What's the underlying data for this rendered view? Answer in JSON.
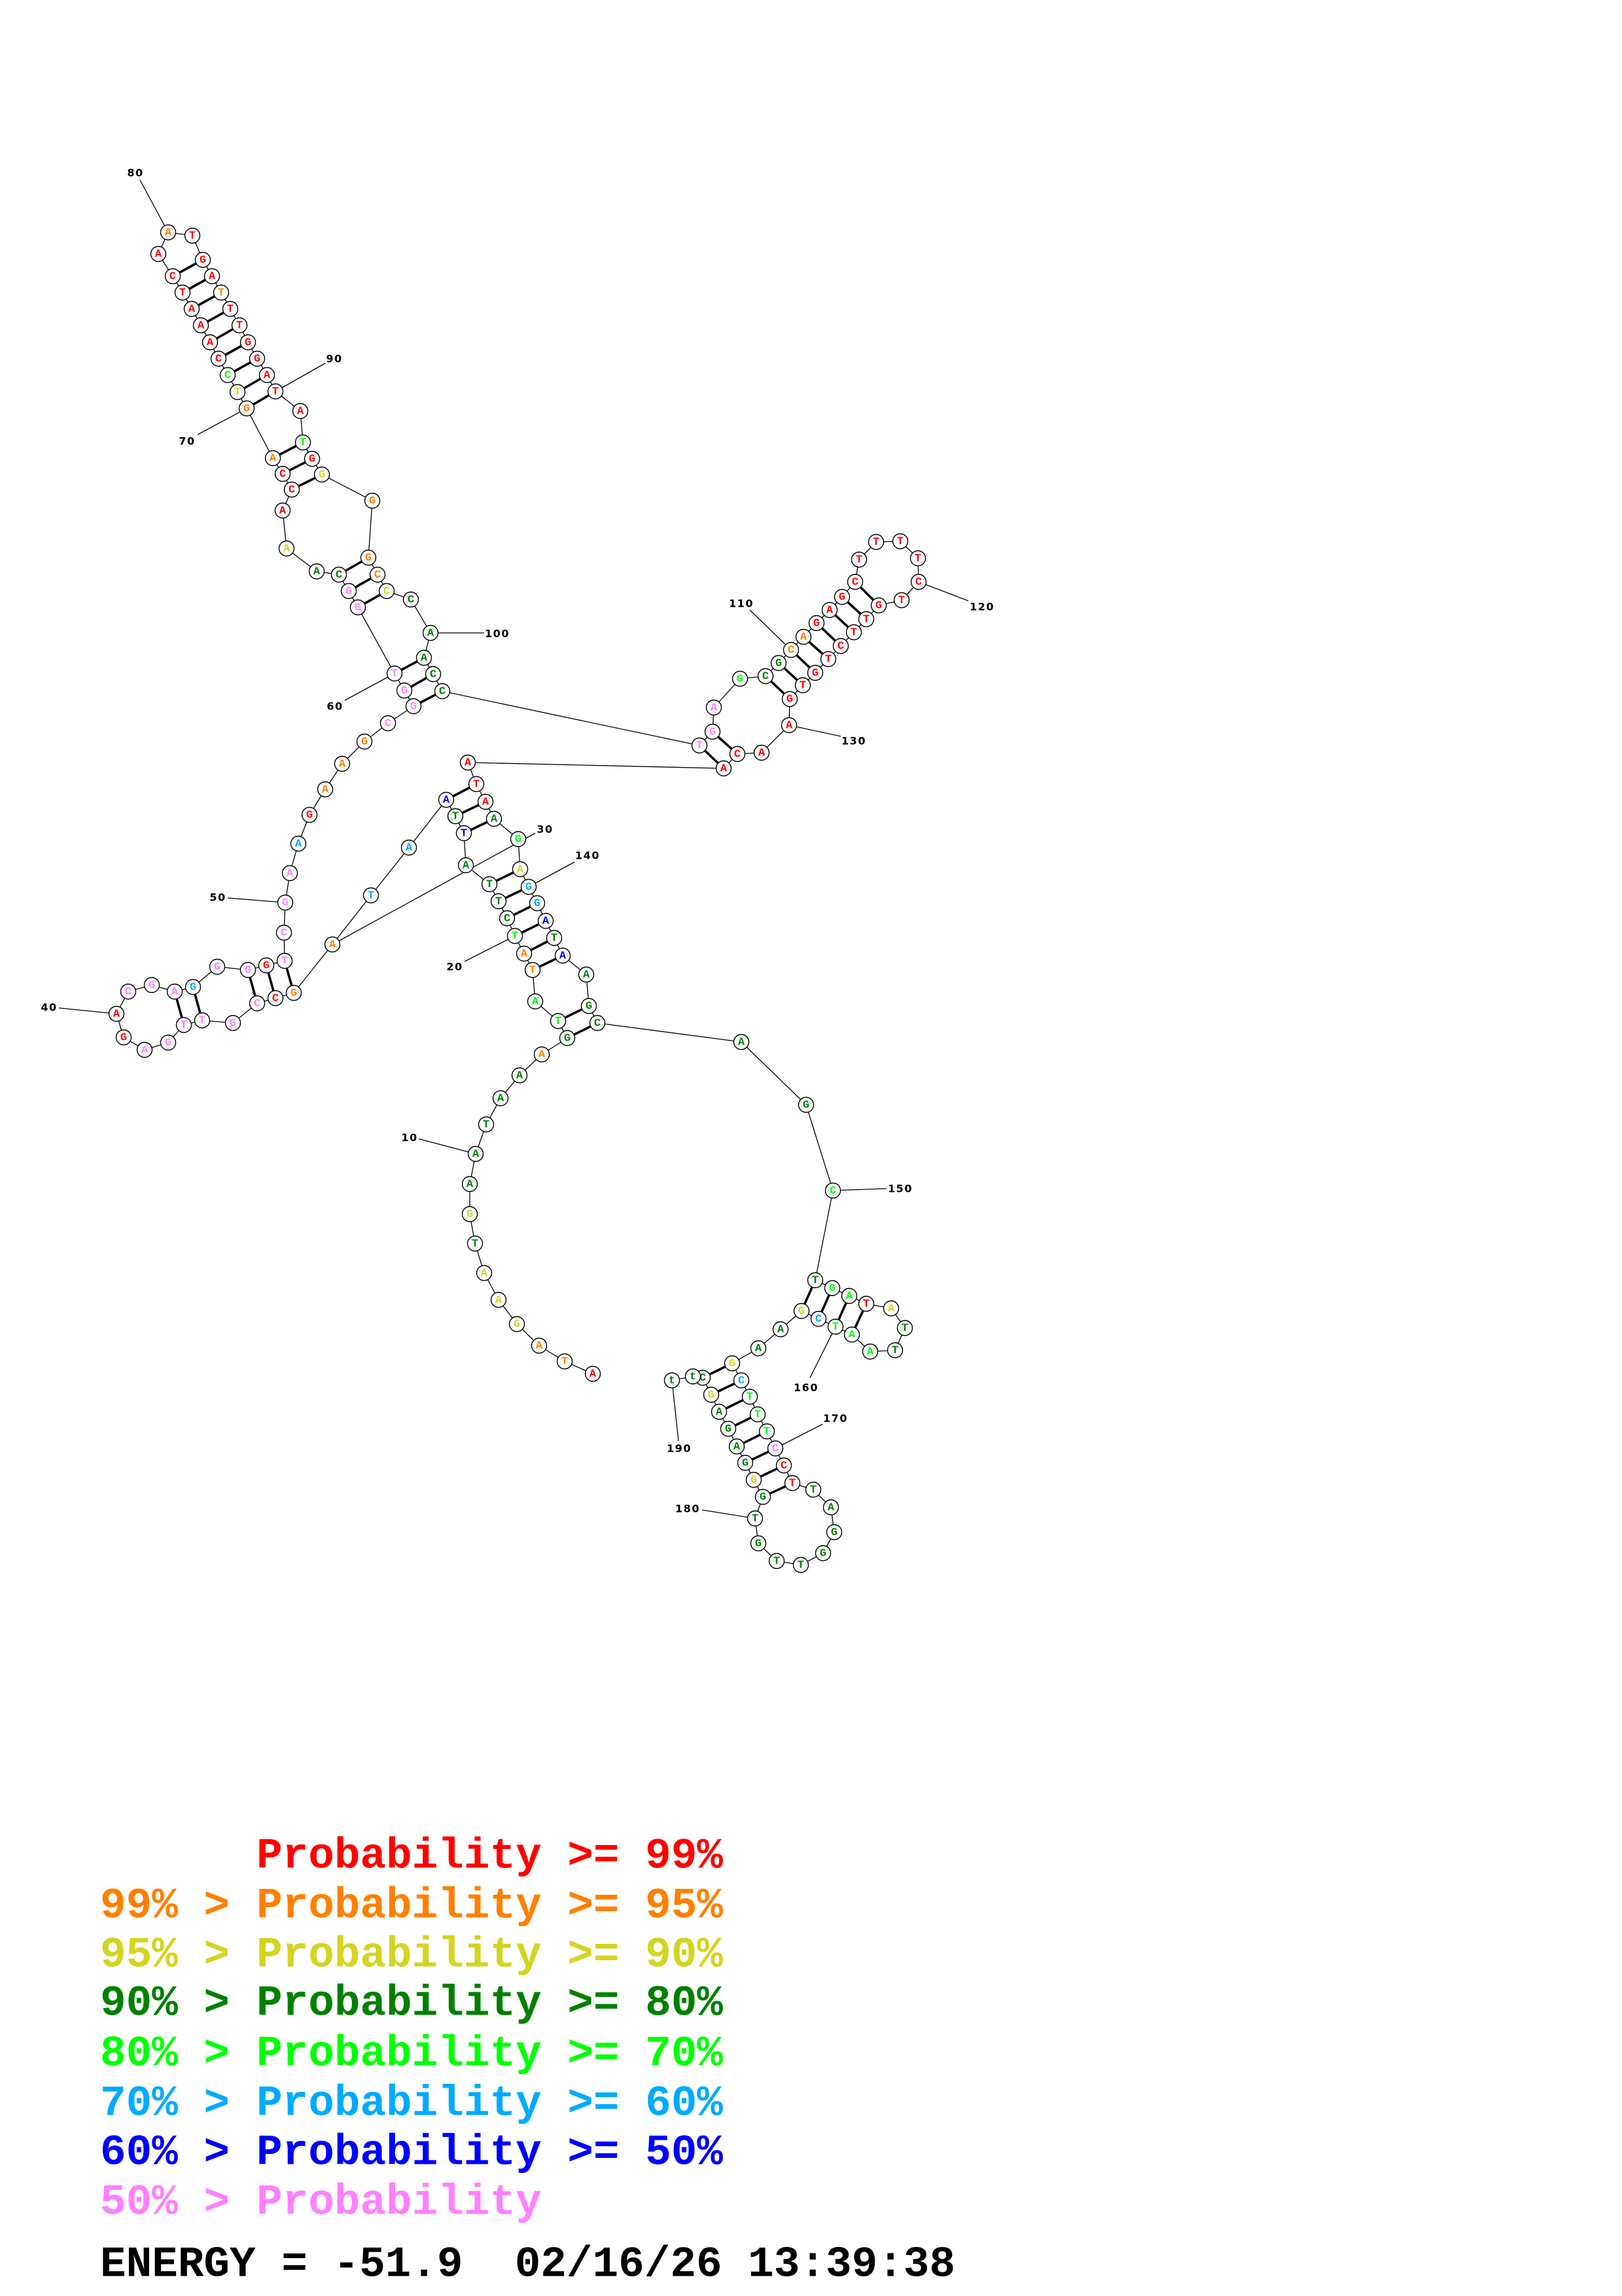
{
  "structure": {
    "bases": [
      "A",
      "T",
      "A",
      "G",
      "A",
      "A",
      "T",
      "G",
      "A",
      "A",
      "T",
      "A",
      "A",
      "A",
      "G",
      "T",
      "A",
      "T",
      "A",
      "T",
      "C",
      "T",
      "T",
      "A",
      "T",
      "T",
      "A",
      "A",
      "T",
      "A",
      "G",
      "C",
      "C",
      "G",
      "T",
      "T",
      "G",
      "A",
      "G",
      "A",
      "C",
      "G",
      "A",
      "G",
      "G",
      "G",
      "G",
      "T",
      "C",
      "G",
      "A",
      "A",
      "G",
      "A",
      "A",
      "G",
      "C",
      "G",
      "G",
      "T",
      "G",
      "G",
      "C",
      "A",
      "A",
      "A",
      "C",
      "C",
      "A",
      "G",
      "T",
      "C",
      "C",
      "A",
      "A",
      "A",
      "T",
      "C",
      "A",
      "A",
      "T",
      "G",
      "A",
      "T",
      "T",
      "T",
      "G",
      "G",
      "A",
      "T",
      "A",
      "T",
      "G",
      "G",
      "G",
      "G",
      "C",
      "C",
      "C",
      "A",
      "A",
      "C",
      "C",
      "T",
      "G",
      "A",
      "G",
      "C",
      "G",
      "C",
      "A",
      "G",
      "A",
      "G",
      "C",
      "T",
      "T",
      "T",
      "T",
      "C",
      "T",
      "G",
      "T",
      "T",
      "C",
      "T",
      "G",
      "T",
      "G",
      "A",
      "A",
      "C",
      "A",
      "A",
      "T",
      "A",
      "A",
      "G",
      "A",
      "G",
      "G",
      "A",
      "T",
      "A",
      "A",
      "G",
      "C",
      "A",
      "G",
      "C",
      "T",
      "G",
      "A",
      "T",
      "A",
      "T",
      "T",
      "A",
      "A",
      "T",
      "C",
      "G",
      "A",
      "A",
      "G",
      "C",
      "T",
      "T",
      "T",
      "C",
      "C",
      "T",
      "T",
      "A",
      "G",
      "G",
      "T",
      "T",
      "G",
      "T",
      "G",
      "G",
      "G",
      "A",
      "G",
      "A",
      "G",
      "C",
      "t",
      "t"
    ],
    "probability_classes": "rooyyygygggggoglloolggggbgbccoorpppppprrpppcpprppppcroooppppppggyrrrooylrrrrrrrorrrorrrrrrrlryoooygggggpppiigoorrrrrrrrrrrrrrrrrrrrrrrrrglyccbgbggggglgllrygglllcyggyclllprrgggggggggyggggyggggggggrr",
    "pairs": [
      [
        15,
        147
      ],
      [
        16,
        146
      ],
      [
        18,
        144
      ],
      [
        19,
        143
      ],
      [
        20,
        142
      ],
      [
        21,
        141
      ],
      [
        22,
        140
      ],
      [
        23,
        139
      ],
      [
        25,
        137
      ],
      [
        26,
        136
      ],
      [
        27,
        135
      ],
      [
        31,
        48
      ],
      [
        32,
        47
      ],
      [
        33,
        46
      ],
      [
        35,
        44
      ],
      [
        36,
        43
      ],
      [
        58,
        103
      ],
      [
        59,
        102
      ],
      [
        60,
        101
      ],
      [
        61,
        98
      ],
      [
        62,
        97
      ],
      [
        63,
        96
      ],
      [
        67,
        94
      ],
      [
        68,
        93
      ],
      [
        69,
        92
      ],
      [
        70,
        90
      ],
      [
        71,
        89
      ],
      [
        72,
        88
      ],
      [
        73,
        87
      ],
      [
        74,
        86
      ],
      [
        75,
        85
      ],
      [
        76,
        84
      ],
      [
        77,
        83
      ],
      [
        78,
        82
      ],
      [
        104,
        133
      ],
      [
        105,
        132
      ],
      [
        108,
        129
      ],
      [
        109,
        128
      ],
      [
        110,
        127
      ],
      [
        111,
        126
      ],
      [
        112,
        125
      ],
      [
        113,
        124
      ],
      [
        114,
        123
      ],
      [
        115,
        122
      ],
      [
        151,
        162
      ],
      [
        152,
        161
      ],
      [
        153,
        160
      ],
      [
        154,
        159
      ],
      [
        165,
        188
      ],
      [
        166,
        187
      ],
      [
        167,
        186
      ],
      [
        168,
        185
      ],
      [
        169,
        184
      ],
      [
        170,
        183
      ],
      [
        171,
        182
      ],
      [
        172,
        181
      ]
    ],
    "labels": [
      "10",
      "20",
      "30",
      "40",
      "50",
      "60",
      "70",
      "80",
      "90",
      "100",
      "110",
      "120",
      "130",
      "140",
      "150",
      "160",
      "170",
      "180",
      "190"
    ]
  },
  "legend": {
    "colors": {
      "r": "#FF0000",
      "o": "#FF8000",
      "y": "#D4D420",
      "g": "#008000",
      "l": "#00FF00",
      "c": "#00AAFF",
      "b": "#0000FF",
      "p": "#FF80FF"
    },
    "rows": [
      {
        "prefix": "",
        "text": "Probability >= 99%",
        "class": "r"
      },
      {
        "prefix": "99% >",
        "text": "Probability >= 95%",
        "class": "o"
      },
      {
        "prefix": "95% >",
        "text": "Probability >= 90%",
        "class": "y"
      },
      {
        "prefix": "90% >",
        "text": "Probability >= 80%",
        "class": "g"
      },
      {
        "prefix": "80% >",
        "text": "Probability >= 70%",
        "class": "l"
      },
      {
        "prefix": "70% >",
        "text": "Probability >= 60%",
        "class": "c"
      },
      {
        "prefix": "60% >",
        "text": "Probability >= 50%",
        "class": "b"
      },
      {
        "prefix": "50% >",
        "text": "Probability",
        "class": "p"
      }
    ]
  },
  "energy_line": "ENERGY = -51.9  02/16/26 13:39:38"
}
